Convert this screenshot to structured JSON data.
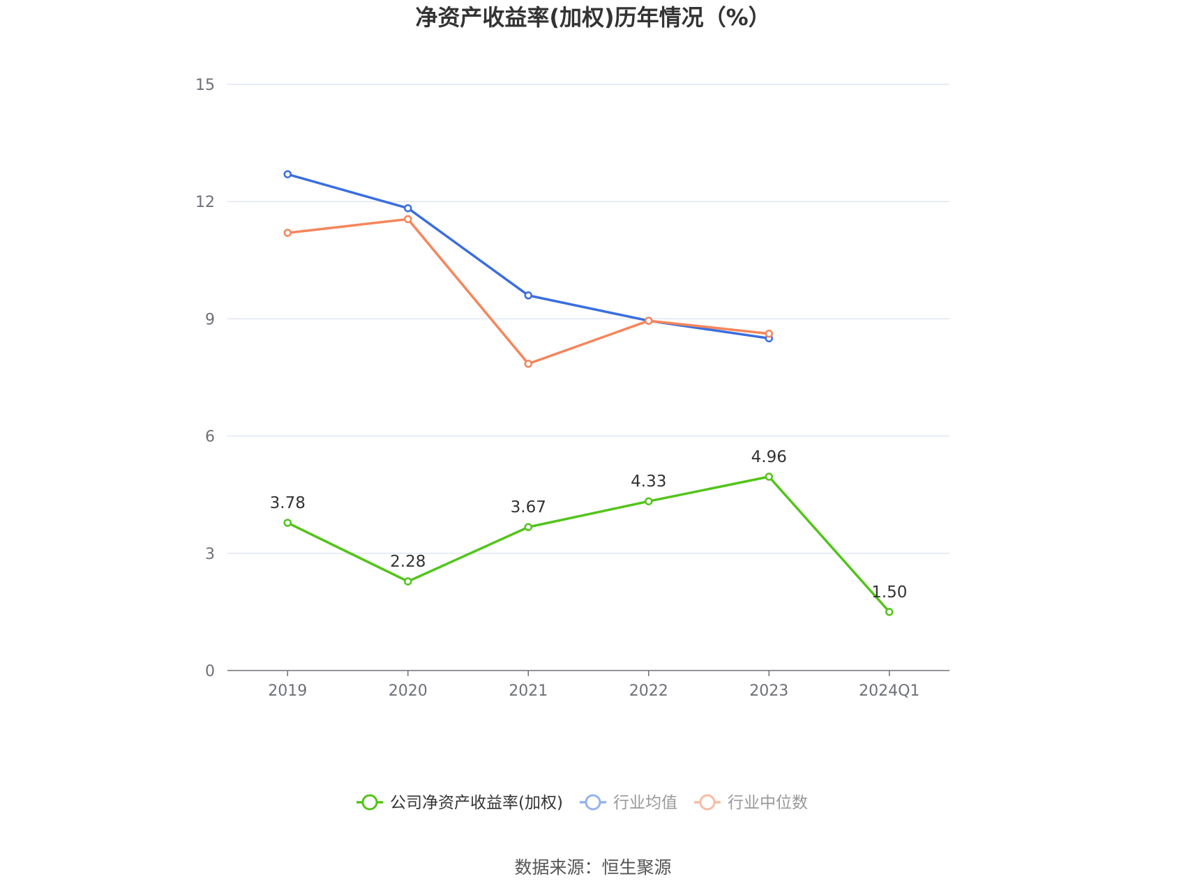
{
  "chart_data": {
    "type": "line",
    "title": "净资产收益率(加权)历年情况（%）",
    "categories": [
      "2019",
      "2020",
      "2021",
      "2022",
      "2023",
      "2024Q1"
    ],
    "ylim": [
      0,
      15
    ],
    "yticks": [
      0,
      3,
      6,
      9,
      12,
      15
    ],
    "grid": true,
    "legend_position": "bottom-center",
    "series": [
      {
        "name": "公司净资产收益率(加权)",
        "color": "#52c41a",
        "values": [
          3.78,
          2.28,
          3.67,
          4.33,
          4.96,
          1.5
        ],
        "labels": [
          "3.78",
          "2.28",
          "3.67",
          "4.33",
          "4.96",
          "1.50"
        ],
        "show_labels": true
      },
      {
        "name": "行业均值",
        "color": "#3a6ee0",
        "legend_color": "#93b3f0",
        "values": [
          12.7,
          11.83,
          9.6,
          8.95,
          8.5,
          null
        ],
        "show_labels": false
      },
      {
        "name": "行业中位数",
        "color": "#f5855a",
        "legend_color": "#f8bca3",
        "values": [
          11.2,
          11.55,
          7.85,
          8.95,
          8.62,
          null
        ],
        "show_labels": false
      }
    ],
    "source": "数据来源：恒生聚源"
  }
}
